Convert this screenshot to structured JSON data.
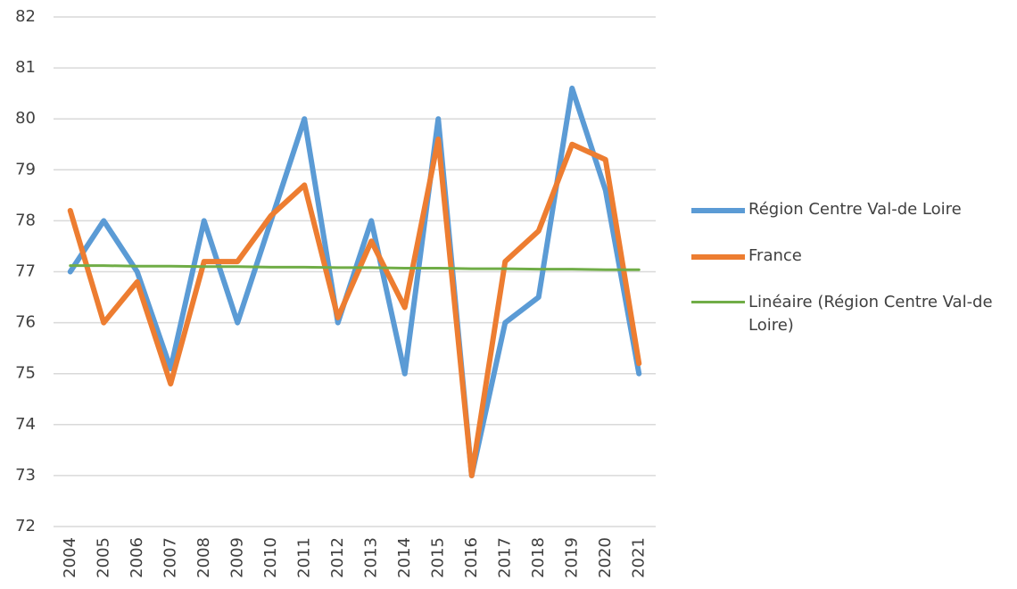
{
  "chart_data": {
    "type": "line",
    "categories": [
      "2004",
      "2005",
      "2006",
      "2007",
      "2008",
      "2009",
      "2010",
      "2011",
      "2012",
      "2013",
      "2014",
      "2015",
      "2016",
      "2017",
      "2018",
      "2019",
      "2020",
      "2021"
    ],
    "series": [
      {
        "name": "Région Centre Val-de Loire",
        "color": "#5b9bd5",
        "values": [
          77.0,
          78.0,
          77.0,
          75.1,
          78.0,
          76.0,
          78.0,
          80.0,
          76.0,
          78.0,
          75.0,
          80.0,
          73.0,
          76.0,
          76.5,
          80.6,
          78.6,
          75.0
        ]
      },
      {
        "name": "France",
        "color": "#ed7d31",
        "values": [
          78.2,
          76.0,
          76.8,
          74.8,
          77.2,
          77.2,
          78.1,
          78.7,
          76.1,
          77.6,
          76.3,
          79.6,
          73.0,
          77.2,
          77.8,
          79.5,
          79.2,
          75.2
        ]
      },
      {
        "name": "Linéaire (Région Centre Val-de Loire)",
        "color": "#70ad47",
        "values": [
          77.12,
          77.12,
          77.11,
          77.11,
          77.1,
          77.1,
          77.09,
          77.09,
          77.08,
          77.08,
          77.07,
          77.07,
          77.06,
          77.06,
          77.05,
          77.05,
          77.04,
          77.04
        ]
      }
    ],
    "ylim": [
      72,
      82
    ],
    "yticks": [
      72,
      73,
      74,
      75,
      76,
      77,
      78,
      79,
      80,
      81,
      82
    ],
    "grid": true,
    "legend": "right"
  }
}
